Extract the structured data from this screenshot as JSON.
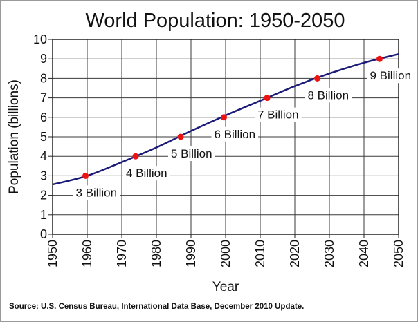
{
  "chart_data": {
    "type": "line",
    "title": "World Population: 1950-2050",
    "xlabel": "Year",
    "ylabel": "Population  (billions)",
    "xlim": [
      1950,
      2050
    ],
    "ylim": [
      0,
      10
    ],
    "x_ticks": [
      "1950",
      "1960",
      "1970",
      "1980",
      "1990",
      "2000",
      "2010",
      "2020",
      "2030",
      "2040",
      "2050"
    ],
    "y_ticks": [
      "0",
      "1",
      "2",
      "3",
      "4",
      "5",
      "6",
      "7",
      "8",
      "9",
      "10"
    ],
    "grid": true,
    "line_color": "#1c1c78",
    "marker_color": "#ee1111",
    "series": [
      {
        "x": [
          1950,
          1960,
          1970,
          1980,
          1990,
          2000,
          2010,
          2020,
          2030,
          2040,
          2050
        ],
        "values": [
          2.55,
          3.0,
          3.7,
          4.45,
          5.3,
          6.1,
          6.85,
          7.6,
          8.25,
          8.8,
          9.25
        ]
      }
    ],
    "milestones": [
      {
        "year": 1959.5,
        "value": 3,
        "label": "3 Billion"
      },
      {
        "year": 1974,
        "value": 4,
        "label": "4 Billion"
      },
      {
        "year": 1987,
        "value": 5,
        "label": "5 Billion"
      },
      {
        "year": 1999.5,
        "value": 6,
        "label": "6 Billion"
      },
      {
        "year": 2012,
        "value": 7,
        "label": "7 Billion"
      },
      {
        "year": 2026.5,
        "value": 8,
        "label": "8 Billion"
      },
      {
        "year": 2044.5,
        "value": 9,
        "label": "9 Billion"
      }
    ]
  },
  "source_note": "Source: U.S. Census Bureau, International Data Base, December 2010 Update."
}
